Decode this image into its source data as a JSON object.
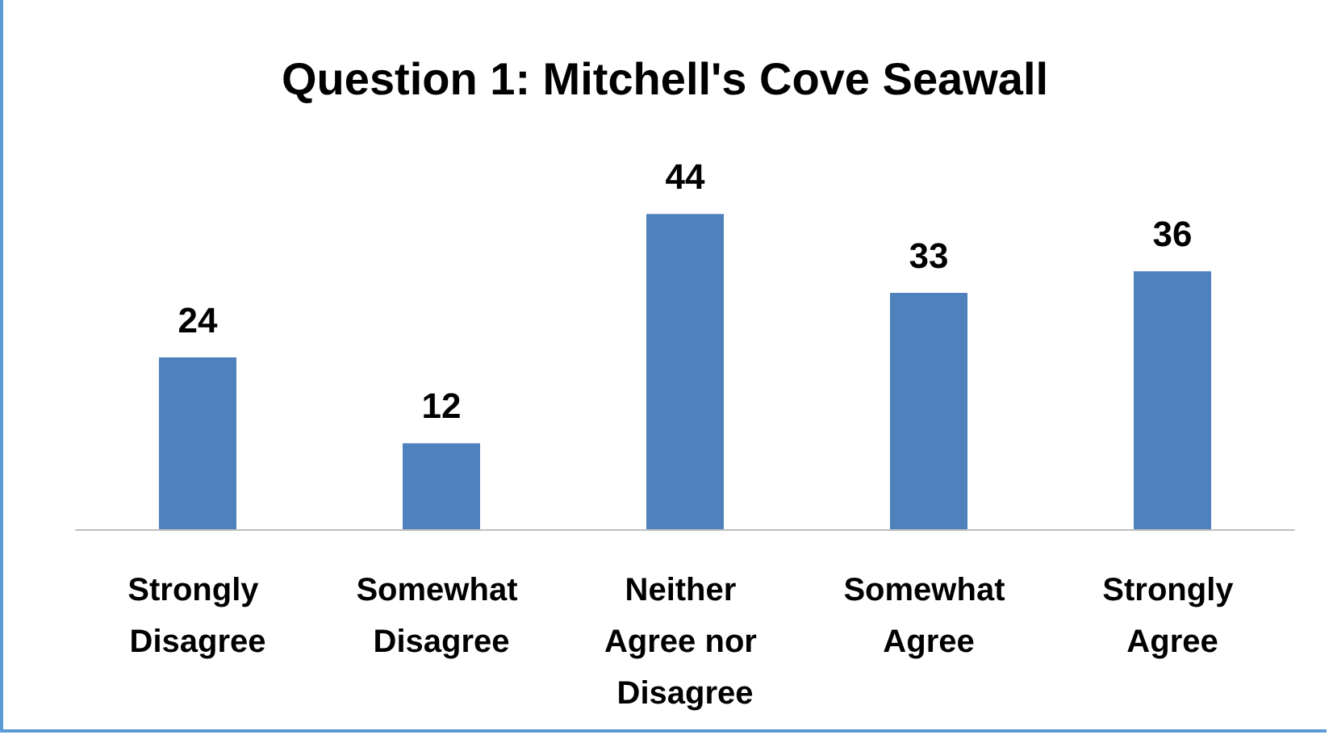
{
  "chart_data": {
    "type": "bar",
    "title": "Question 1: Mitchell's Cove Seawall",
    "categories": [
      "Strongly Disagree",
      "Somewhat Disagree",
      "Neither Agree nor Disagree",
      "Somewhat Agree",
      "Strongly Agree"
    ],
    "values": [
      24,
      12,
      44,
      33,
      36
    ],
    "color": "#4f81bd",
    "data_labels": true
  }
}
